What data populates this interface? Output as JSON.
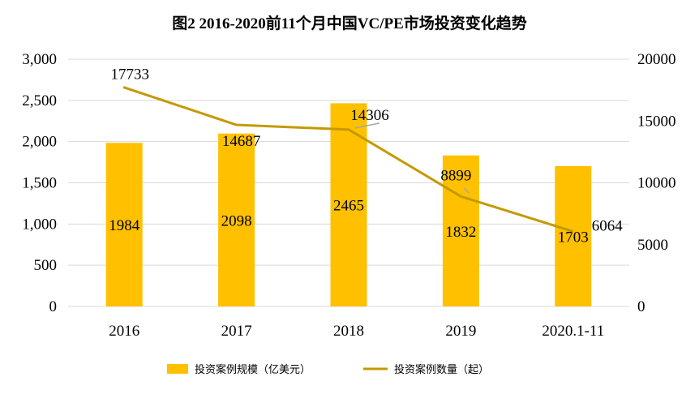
{
  "chart_data": {
    "type": "bar+line",
    "title": "图2   2016-2020前11个月中国VC/PE市场投资变化趋势",
    "categories": [
      "2016",
      "2017",
      "2018",
      "2019",
      "2020.1-11"
    ],
    "series": [
      {
        "name": "投资案例规模（亿美元）",
        "type": "bar",
        "axis": "left",
        "color": "#FFC000",
        "values": [
          1984,
          2098,
          2465,
          1832,
          1703
        ]
      },
      {
        "name": "投资案例数量（起）",
        "type": "line",
        "axis": "right",
        "color": "#C49A00",
        "values": [
          17733,
          14687,
          14306,
          8899,
          6064
        ]
      }
    ],
    "left_axis": {
      "ylim": [
        0,
        3000
      ],
      "ticks": [
        "0",
        "500",
        "1,000",
        "1,500",
        "2,000",
        "2,500",
        "3,000"
      ]
    },
    "right_axis": {
      "ylim": [
        0,
        20000
      ],
      "ticks": [
        "0",
        "5000",
        "10000",
        "15000",
        "20000"
      ]
    },
    "grid": true,
    "legend_position": "bottom"
  }
}
